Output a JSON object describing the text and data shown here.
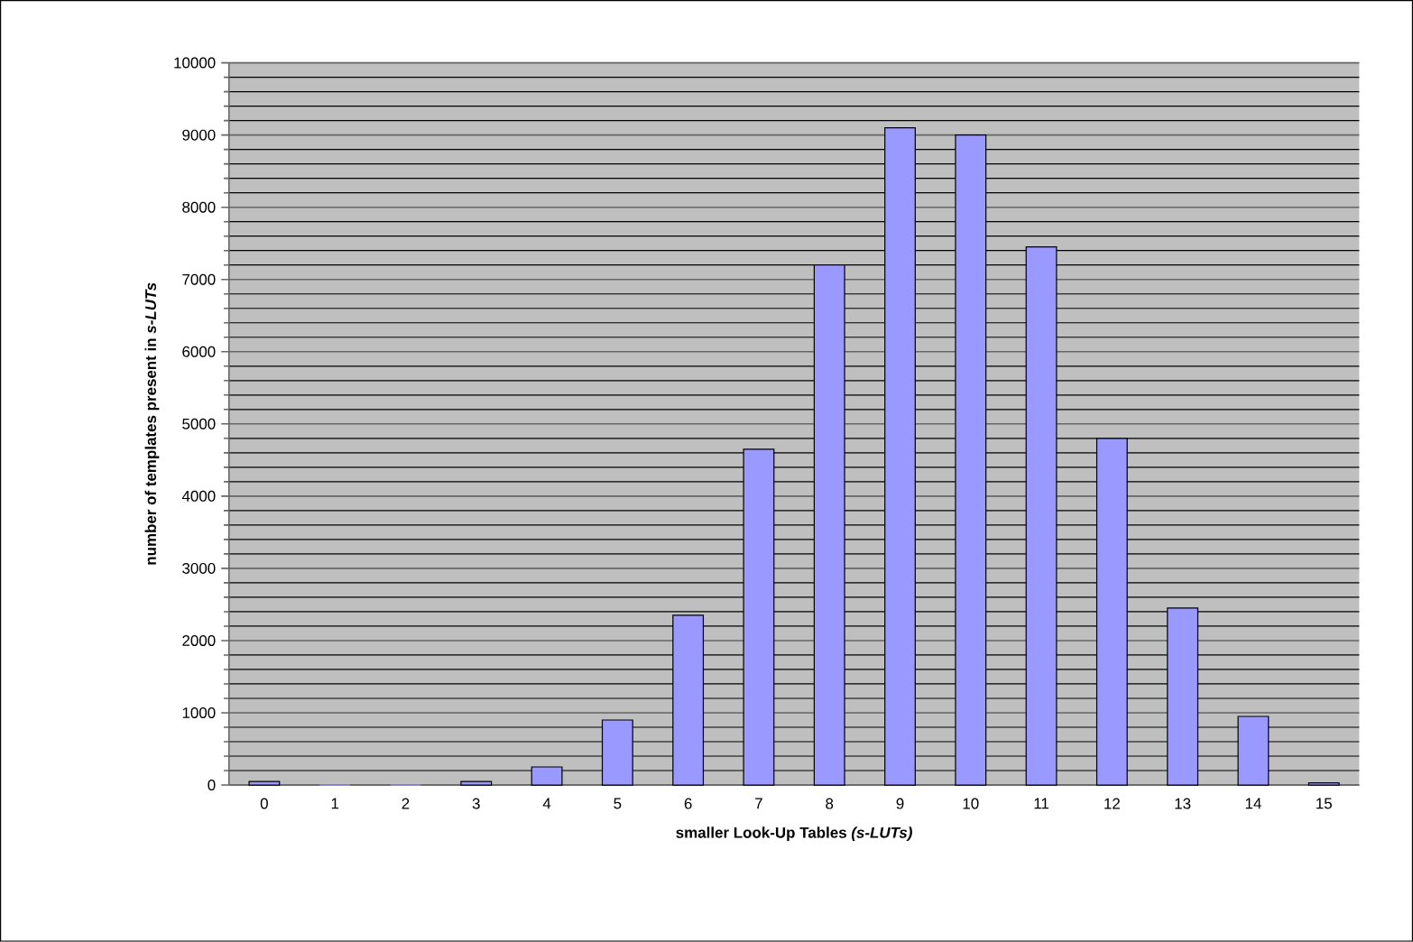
{
  "chart_data": {
    "type": "bar",
    "xlabel": "smaller Look-Up Tables *(s-LUTs)*",
    "ylabel": "number of templates present in *s-LUTs*",
    "categories": [
      "0",
      "1",
      "2",
      "3",
      "4",
      "5",
      "6",
      "7",
      "8",
      "9",
      "10",
      "11",
      "12",
      "13",
      "14",
      "15"
    ],
    "values": [
      50,
      0,
      0,
      50,
      250,
      900,
      2350,
      4650,
      7200,
      9100,
      9000,
      7450,
      4800,
      2450,
      950,
      30
    ],
    "color": "#9999ff",
    "ylim": [
      0,
      10000
    ],
    "yticks": [
      0,
      1000,
      2000,
      3000,
      4000,
      5000,
      6000,
      7000,
      8000,
      9000,
      10000
    ],
    "grid": "y"
  }
}
